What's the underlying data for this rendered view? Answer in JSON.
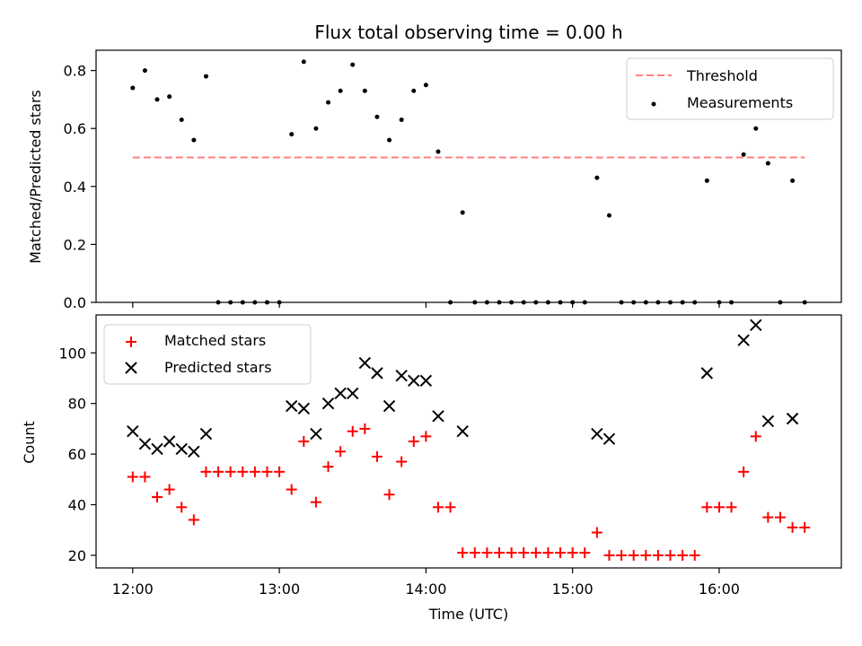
{
  "chart_data": [
    {
      "type": "scatter",
      "title": "Flux total observing time = 0.00 h",
      "ylabel": "Matched/Predicted stars",
      "xlabel": "",
      "xlim": [
        "11:45",
        "16:50"
      ],
      "ylim": [
        0,
        0.87
      ],
      "yticks": [
        "0.0",
        "0.2",
        "0.4",
        "0.6",
        "0.8"
      ],
      "xticks": [
        "12:00",
        "13:00",
        "14:00",
        "15:00",
        "16:00"
      ],
      "legend_position": "top-right",
      "series": [
        {
          "name": "Threshold",
          "kind": "line",
          "style": "dashed",
          "color": "#ff7f7f",
          "x": [
            "12:00",
            "16:35"
          ],
          "y": [
            0.5,
            0.5
          ]
        },
        {
          "name": "Measurements",
          "kind": "scatter",
          "marker": "dot",
          "color": "#000000",
          "x": [
            "12:00",
            "12:05",
            "12:10",
            "12:15",
            "12:20",
            "12:25",
            "12:30",
            "12:35",
            "12:40",
            "12:45",
            "12:50",
            "12:55",
            "13:00",
            "13:05",
            "13:10",
            "13:15",
            "13:20",
            "13:25",
            "13:30",
            "13:35",
            "13:40",
            "13:45",
            "13:50",
            "13:55",
            "14:00",
            "14:05",
            "14:10",
            "14:15",
            "14:20",
            "14:25",
            "14:30",
            "14:35",
            "14:40",
            "14:45",
            "14:50",
            "14:55",
            "15:00",
            "15:05",
            "15:10",
            "15:15",
            "15:20",
            "15:25",
            "15:30",
            "15:35",
            "15:40",
            "15:45",
            "15:50",
            "15:55",
            "16:00",
            "16:05",
            "16:10",
            "16:15",
            "16:20",
            "16:25",
            "16:30",
            "16:35"
          ],
          "y": [
            0.74,
            0.8,
            0.7,
            0.71,
            0.63,
            0.56,
            0.78,
            0,
            0,
            0,
            0,
            0,
            0,
            0.58,
            0.83,
            0.6,
            0.69,
            0.73,
            0.82,
            0.73,
            0.64,
            0.56,
            0.63,
            0.73,
            0.75,
            0.52,
            0,
            0.31,
            0,
            0,
            0,
            0,
            0,
            0,
            0,
            0,
            0,
            0,
            0.43,
            0.3,
            0,
            0,
            0,
            0,
            0,
            0,
            0,
            0.42,
            0,
            0,
            0.51,
            0.6,
            0.48,
            0,
            0.42,
            0
          ]
        }
      ]
    },
    {
      "type": "scatter",
      "title": "",
      "ylabel": "Count",
      "xlabel": "Time (UTC)",
      "xlim": [
        "11:45",
        "16:50"
      ],
      "ylim": [
        15,
        115
      ],
      "yticks": [
        "20",
        "40",
        "60",
        "80",
        "100"
      ],
      "xticks": [
        "12:00",
        "13:00",
        "14:00",
        "15:00",
        "16:00"
      ],
      "legend_position": "top-left",
      "series": [
        {
          "name": "Matched stars",
          "kind": "scatter",
          "marker": "plus",
          "color": "#ff0000",
          "x": [
            "12:00",
            "12:05",
            "12:10",
            "12:15",
            "12:20",
            "12:25",
            "12:30",
            "12:35",
            "12:40",
            "12:45",
            "12:50",
            "12:55",
            "13:00",
            "13:05",
            "13:10",
            "13:15",
            "13:20",
            "13:25",
            "13:30",
            "13:35",
            "13:40",
            "13:45",
            "13:50",
            "13:55",
            "14:00",
            "14:05",
            "14:10",
            "14:15",
            "14:20",
            "14:25",
            "14:30",
            "14:35",
            "14:40",
            "14:45",
            "14:50",
            "14:55",
            "15:00",
            "15:05",
            "15:10",
            "15:15",
            "15:20",
            "15:25",
            "15:30",
            "15:35",
            "15:40",
            "15:45",
            "15:50",
            "15:55",
            "16:00",
            "16:05",
            "16:10",
            "16:15",
            "16:20",
            "16:25",
            "16:30",
            "16:35"
          ],
          "y": [
            51,
            51,
            43,
            46,
            39,
            34,
            53,
            53,
            53,
            53,
            53,
            53,
            53,
            46,
            65,
            41,
            55,
            61,
            69,
            70,
            59,
            44,
            57,
            65,
            67,
            39,
            39,
            21,
            21,
            21,
            21,
            21,
            21,
            21,
            21,
            21,
            21,
            21,
            29,
            20,
            20,
            20,
            20,
            20,
            20,
            20,
            20,
            39,
            39,
            39,
            53,
            67,
            35,
            35,
            31,
            31
          ]
        },
        {
          "name": "Predicted stars",
          "kind": "scatter",
          "marker": "x",
          "color": "#000000",
          "x": [
            "12:00",
            "12:05",
            "12:10",
            "12:15",
            "12:20",
            "12:25",
            "12:30",
            "13:05",
            "13:10",
            "13:15",
            "13:20",
            "13:25",
            "13:30",
            "13:35",
            "13:40",
            "13:45",
            "13:50",
            "13:55",
            "14:00",
            "14:05",
            "14:15",
            "15:10",
            "15:15",
            "15:55",
            "16:10",
            "16:15",
            "16:20",
            "16:30"
          ],
          "y": [
            69,
            64,
            62,
            65,
            62,
            61,
            68,
            79,
            78,
            68,
            80,
            84,
            84,
            96,
            92,
            79,
            91,
            89,
            89,
            75,
            69,
            68,
            66,
            92,
            105,
            111,
            73,
            74
          ]
        }
      ]
    }
  ]
}
